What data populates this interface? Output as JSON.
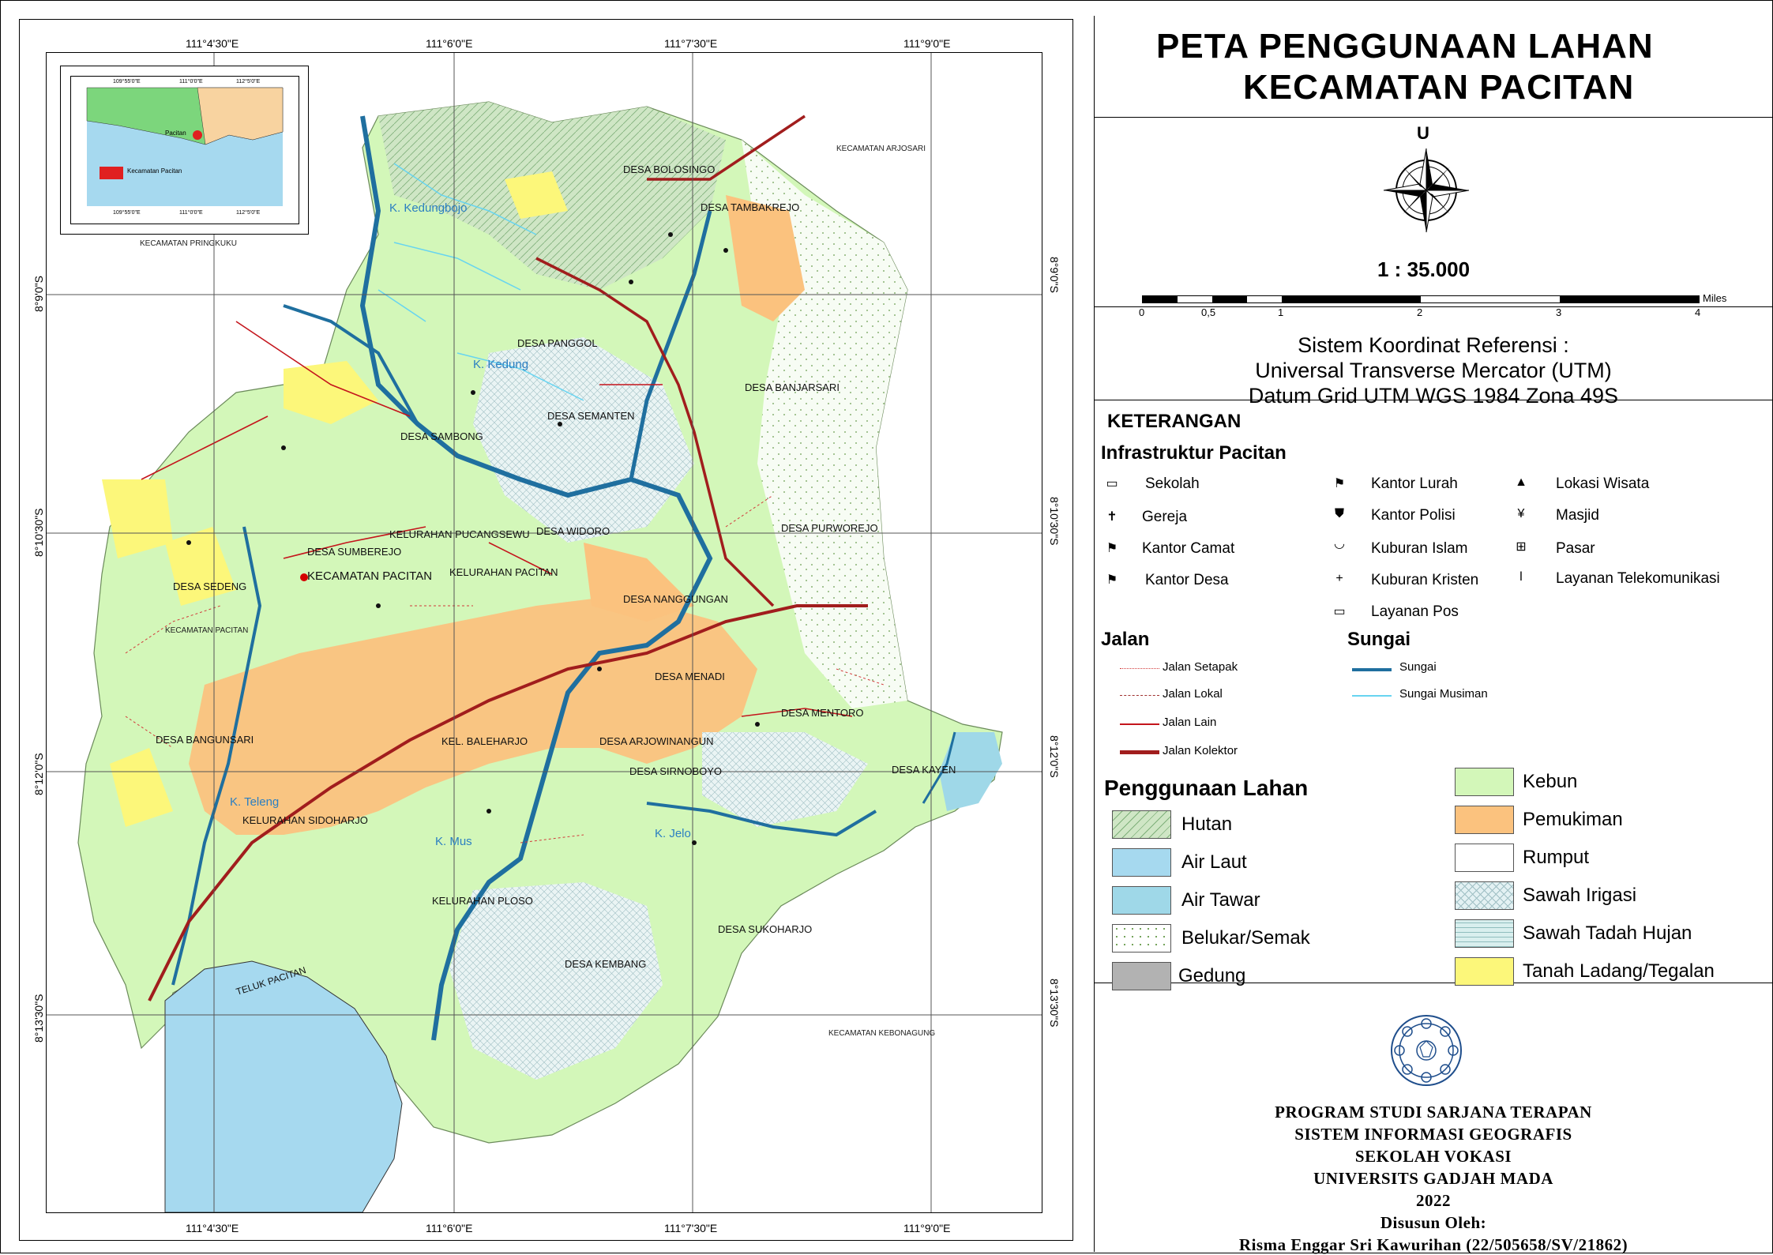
{
  "title": {
    "line1": "PETA PENGGUNAAN LAHAN",
    "line2": "KECAMATAN PACITAN"
  },
  "north_label": "U",
  "scale": {
    "ratio": "1 : 35.000",
    "unit": "Miles",
    "ticks": [
      "0",
      "0,5",
      "1",
      "2",
      "3",
      "4"
    ]
  },
  "reference": {
    "line1": "Sistem Koordinat Referensi :",
    "line2": "Universal Transverse Mercator (UTM)",
    "line3": "Datum Grid UTM WGS 1984 Zona 49S"
  },
  "legend": {
    "heading": "KETERANGAN",
    "infra_heading": "Infrastruktur Pacitan",
    "infra_items": [
      {
        "label": "Sekolah",
        "icon": "school-icon"
      },
      {
        "label": "Gereja",
        "icon": "church-icon"
      },
      {
        "label": "Kantor Camat",
        "icon": "subdistrict-office-icon"
      },
      {
        "label": "Kantor Desa",
        "icon": "village-office-icon"
      },
      {
        "label": "Kantor Lurah",
        "icon": "lurah-office-icon"
      },
      {
        "label": "Kantor Polisi",
        "icon": "police-icon"
      },
      {
        "label": "Kuburan Islam",
        "icon": "islamic-cemetery-icon"
      },
      {
        "label": "Kuburan Kristen",
        "icon": "christian-cemetery-icon"
      },
      {
        "label": "Layanan Pos",
        "icon": "post-icon"
      },
      {
        "label": "Lokasi Wisata",
        "icon": "tourism-icon"
      },
      {
        "label": "Masjid",
        "icon": "mosque-icon"
      },
      {
        "label": "Pasar",
        "icon": "market-icon"
      },
      {
        "label": "Layanan Telekomunikasi",
        "icon": "telecom-icon"
      }
    ],
    "road_heading": "Jalan",
    "roads": [
      {
        "label": "Jalan Setapak",
        "color": "#d23b3b"
      },
      {
        "label": "Jalan Lokal",
        "color": "#a0312f"
      },
      {
        "label": "Jalan Lain",
        "color": "#c4151c"
      },
      {
        "label": "Jalan Kolektor",
        "color": "#a11d1d"
      }
    ],
    "river_heading": "Sungai",
    "rivers": [
      {
        "label": "Sungai",
        "color": "#1f6f9f"
      },
      {
        "label": "Sungai Musiman",
        "color": "#67d4f0"
      }
    ],
    "landuse_heading": "Penggunaan Lahan",
    "landuse": [
      {
        "label": "Hutan",
        "color": "#cfe6c5"
      },
      {
        "label": "Air Laut",
        "color": "#a6d9ef"
      },
      {
        "label": "Air Tawar",
        "color": "#9fd8e8"
      },
      {
        "label": "Belukar/Semak",
        "color": "#ffffff"
      },
      {
        "label": "Gedung",
        "color": "#b2b2b2"
      },
      {
        "label": "Kebun",
        "color": "#d3f7b9"
      },
      {
        "label": "Pemukiman",
        "color": "#fbc27e"
      },
      {
        "label": "Rumput",
        "color": "#ffffff"
      },
      {
        "label": "Sawah Irigasi",
        "color": "#e3f1f3"
      },
      {
        "label": "Sawah Tadah Hujan",
        "color": "#d9efee"
      },
      {
        "label": "Tanah Ladang/Tegalan",
        "color": "#fcf77a"
      }
    ]
  },
  "credit": {
    "line1": "PROGRAM STUDI SARJANA TERAPAN",
    "line2": "SISTEM INFORMASI GEOGRAFIS",
    "line3": "SEKOLAH VOKASI",
    "line4": "UNIVERSITS GADJAH MADA",
    "line5": "2022",
    "line6": "Disusun Oleh:",
    "line7": "Risma Enggar Sri Kawurihan (22/505658/SV/21862)"
  },
  "map": {
    "coords_top": [
      "111°4'30\"E",
      "111°6'0\"E",
      "111°7'30\"E",
      "111°9'0\"E"
    ],
    "coords_bottom": [
      "111°4'30\"E",
      "111°6'0\"E",
      "111°7'30\"E",
      "111°9'0\"E"
    ],
    "coords_left": [
      "8°9'0\"S",
      "8°10'30\"S",
      "8°12'0\"S",
      "8°13'30\"S"
    ],
    "coords_right": [
      "8°9'0\"S",
      "8°10'30\"S",
      "8°12'0\"S",
      "8°13'30\"S"
    ],
    "outer_labels": {
      "pringkuku": "KECAMATAN PRINGKUKU",
      "arjosari": "KECAMATAN ARJOSARI",
      "kebonagung": "KECAMATAN KEBONAGUNG",
      "bay": "TELUK PACITAN"
    },
    "desa_labels": [
      "DESA BOLOSINGO",
      "DESA TAMBAKREJO",
      "DESA PANGGOL",
      "DESA BANJARSARI",
      "DESA SAMBONG",
      "DESA SEMANTEN",
      "DESA PURWOREJO",
      "KELURAHAN PUCANGSEWU",
      "DESA WIDORO",
      "DESA SUMBEREJO",
      "KELURAHAN PACITAN",
      "KECAMATAN PACITAN",
      "DESA SEDENG",
      "DESA NANGGUNGAN",
      "KECAMATAN PACITAN",
      "DESA MENADI",
      "DESA MENTORO",
      "DESA BANGUNSARI",
      "KEL. BALEHARJO",
      "DESA ARJOWINANGUN",
      "DESA SIRNOBOYO",
      "DESA KAYEN",
      "KELURAHAN SIDOHARJO",
      "KELURAHAN PLOSO",
      "DESA SUKOHARJO",
      "DESA KEMBANG"
    ],
    "rivers": [
      "K. Kedungbojo",
      "K. Kedung",
      "K. Teleng",
      "K. Mus",
      "K. Jelo"
    ]
  },
  "inset": {
    "label": "Kecamatan Pacitan",
    "top_ticks": [
      "109°55'0\"E",
      "111°0'0\"E",
      "112°5'0\"E"
    ],
    "bottom_ticks": [
      "109°55'0\"E",
      "111°0'0\"E",
      "112°5'0\"E"
    ],
    "place": "Pacitan"
  }
}
